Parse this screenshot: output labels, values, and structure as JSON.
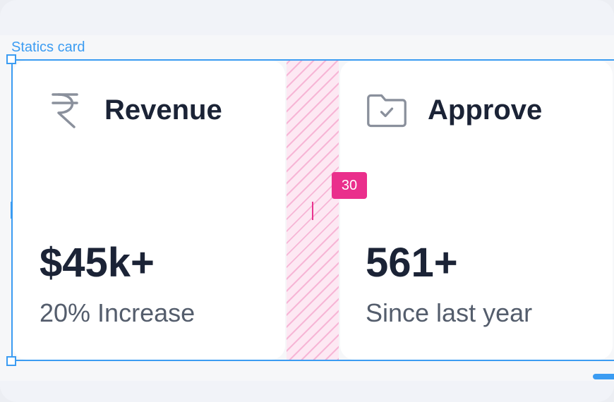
{
  "selection": {
    "label": "Statics card"
  },
  "spacing": {
    "gap_value": "30"
  },
  "cards": [
    {
      "icon": "rupee-icon",
      "title": "Revenue",
      "value": "$45k+",
      "subtitle": "20% Increase"
    },
    {
      "icon": "folder-check-icon",
      "title": "Approve",
      "value": "561+",
      "subtitle": "Since last year"
    }
  ],
  "colors": {
    "selection": "#3b9cf2",
    "spacing_badge": "#ea2f8c",
    "text_primary": "#1b2336",
    "text_secondary": "#545d6c",
    "icon": "#8a909c"
  }
}
